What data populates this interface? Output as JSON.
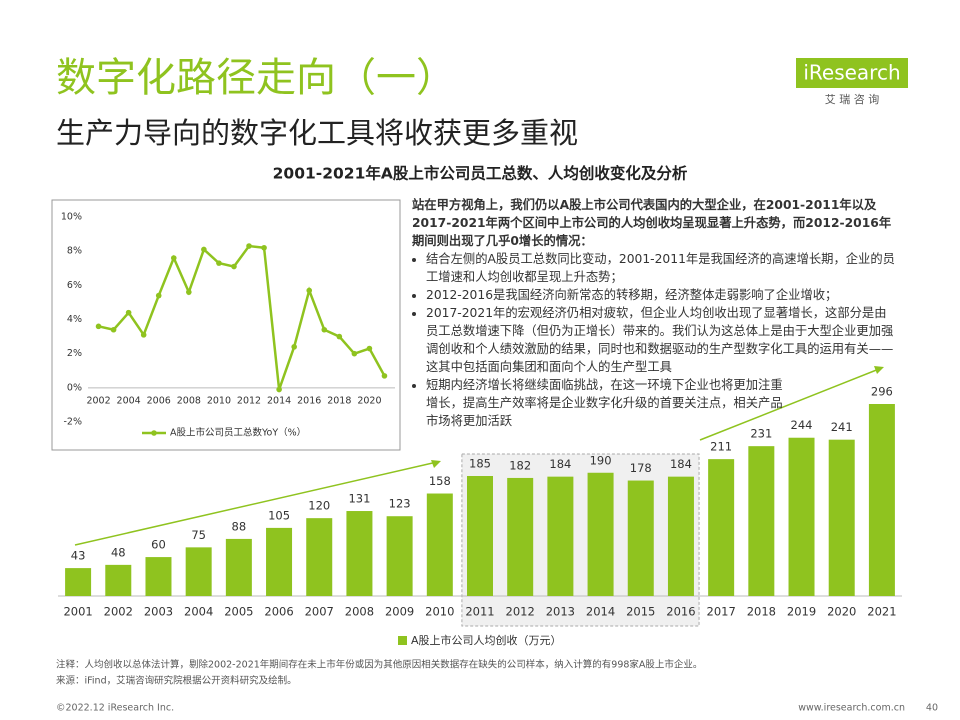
{
  "header": {
    "title": "数字化路径走向（一）",
    "subtitle": "生产力导向的数字化工具将收获更多重视",
    "logo": "iResearch",
    "logo_sub": "艾 瑞 咨 询"
  },
  "chart_title": "2001-2021年A股上市公司员工总数、人均创收变化及分析",
  "analysis": {
    "intro": "站在甲方视角上，我们仍以A股上市公司代表国内的大型企业，在2001-2011年以及2017-2021年两个区间中上市公司的人均创收均呈现显著上升态势，而2012-2016年期间则出现了几乎0增长的情况：",
    "bullets": [
      "结合左侧的A股员工总数同比变动，2001-2011年是我国经济的高速增长期，企业的员工增速和人均创收都呈现上升态势；",
      "2012-2016是我国经济向新常态的转移期，经济整体走弱影响了企业增收；",
      "2017-2021年的宏观经济仍相对疲软，但企业人均创收出现了显著增长，这部分是由员工总数增速下降（但仍为正增长）带来的。我们认为这总体上是由于大型企业更加强调创收和个人绩效激励的结果，同时也和数据驱动的生产型数字化工具的运用有关——这其中包括面向集团和面向个人的生产型工具",
      "短期内经济增长将继续面临挑战，在这一环境下企业也将更加注重增长，提高生产效率将是企业数字化升级的首要关注点，相关产品市场将更加活跃"
    ]
  },
  "chart_data": [
    {
      "type": "line",
      "x": [
        2002,
        2003,
        2004,
        2005,
        2006,
        2007,
        2008,
        2009,
        2010,
        2011,
        2012,
        2013,
        2014,
        2015,
        2016,
        2017,
        2018,
        2019,
        2020,
        2021
      ],
      "series": [
        {
          "name": "A股上市公司员工总数YoY（%）",
          "color": "#8fc31f",
          "values": [
            3.6,
            3.4,
            4.4,
            3.1,
            5.4,
            7.6,
            5.6,
            8.1,
            7.3,
            7.1,
            8.3,
            8.2,
            -0.1,
            2.4,
            5.7,
            3.4,
            3.0,
            2.0,
            2.3,
            0.7
          ]
        }
      ],
      "xlim": [
        2001.3,
        2021.7
      ],
      "xticks": [
        2002,
        2004,
        2006,
        2008,
        2010,
        2012,
        2014,
        2016,
        2018,
        2020
      ],
      "ylim": [
        -2,
        10
      ],
      "yticks": [
        {
          "value": -2,
          "label": "-2%"
        },
        {
          "value": 0,
          "label": "0%"
        },
        {
          "value": 2,
          "label": "2%"
        },
        {
          "value": 4,
          "label": "4%"
        },
        {
          "value": 6,
          "label": "6%"
        },
        {
          "value": 8,
          "label": "8%"
        },
        {
          "value": 10,
          "label": "10%"
        }
      ],
      "grid": false
    },
    {
      "type": "bar",
      "categories": [
        "2001",
        "2002",
        "2003",
        "2004",
        "2005",
        "2006",
        "2007",
        "2008",
        "2009",
        "2010",
        "2011",
        "2012",
        "2013",
        "2014",
        "2015",
        "2016",
        "2017",
        "2018",
        "2019",
        "2020",
        "2021"
      ],
      "series": [
        {
          "name": "A股上市公司人均创收（万元）",
          "color": "#8fc31f",
          "values": [
            43,
            48,
            60,
            75,
            88,
            105,
            120,
            131,
            123,
            158,
            185,
            182,
            184,
            190,
            178,
            184,
            211,
            231,
            244,
            241,
            296
          ]
        }
      ],
      "highlight": {
        "from": "2011",
        "to": "2016"
      }
    }
  ],
  "notes": [
    "注释：人均创收以总体法计算，剔除2002-2021年期间存在未上市年份或因为其他原因相关数据存在缺失的公司样本，纳入计算的有998家A股上市企业。",
    "来源：iFind，艾瑞咨询研究院根据公开资料研究及绘制。"
  ],
  "footer": {
    "copyright": "©2022.12 iResearch Inc.",
    "website": "www.iresearch.com.cn",
    "page": 40
  }
}
